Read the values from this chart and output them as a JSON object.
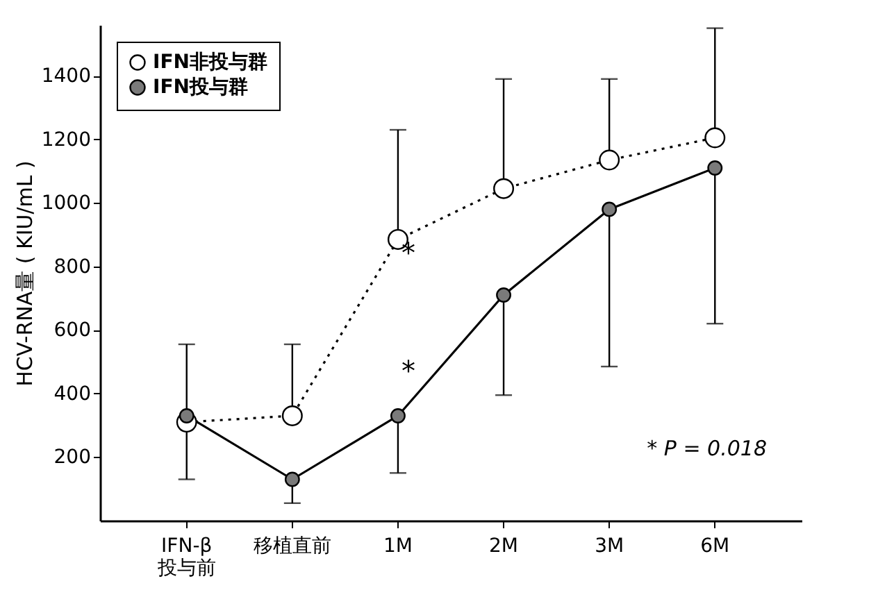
{
  "chart_data": {
    "type": "line",
    "categories": [
      "IFN-β\n投与前",
      "移植直前",
      "1M",
      "2M",
      "3M",
      "6M"
    ],
    "ylabel": "HCV-RNA量 ( KIU/mL )",
    "series": [
      {
        "name": "IFN非投与群",
        "color": "#ffffff",
        "line_style": "dotted",
        "values": [
          310,
          330,
          885,
          1045,
          1135,
          1205
        ],
        "errors": [
          null,
          [
            330,
            555
          ],
          [
            885,
            1230
          ],
          [
            1045,
            1390
          ],
          [
            1135,
            1390
          ],
          [
            1205,
            1550
          ]
        ]
      },
      {
        "name": "IFN投与群",
        "color": "#7a7a7a",
        "line_style": "solid",
        "values": [
          330,
          130,
          330,
          710,
          980,
          1110
        ],
        "errors": [
          [
            130,
            555
          ],
          [
            55,
            130
          ],
          [
            150,
            330
          ],
          [
            395,
            710
          ],
          [
            485,
            980
          ],
          [
            620,
            1110
          ]
        ]
      }
    ],
    "ylim": [
      0,
      1560
    ],
    "yticks": [
      200,
      400,
      600,
      800,
      1000,
      1200,
      1400
    ],
    "grid": false,
    "legend": "top left",
    "marker": "circle",
    "annotations": [
      "*",
      "*",
      "* P = 0.018"
    ]
  }
}
